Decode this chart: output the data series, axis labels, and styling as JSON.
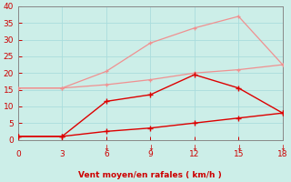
{
  "x": [
    0,
    3,
    6,
    9,
    12,
    15,
    18
  ],
  "line1_y": [
    15.5,
    15.5,
    20.5,
    29,
    33.5,
    37,
    22.5
  ],
  "line2_y": [
    15.5,
    15.5,
    16.5,
    18,
    20,
    21,
    22.5
  ],
  "line3_y": [
    1,
    1,
    11.5,
    13.5,
    19.5,
    15.5,
    8
  ],
  "line4_y": [
    1,
    1,
    2.5,
    3.5,
    5,
    6.5,
    8
  ],
  "line1_color": "#f09090",
  "line2_color": "#f09090",
  "line3_color": "#dd0000",
  "line4_color": "#dd0000",
  "bg_color": "#cceee8",
  "grid_color": "#aadddd",
  "xlabel": "Vent moyen/en rafales ( km/h )",
  "xlabel_color": "#cc0000",
  "tick_color": "#cc0000",
  "axis_color": "#888888",
  "ylim": [
    0,
    40
  ],
  "xlim": [
    0,
    18
  ],
  "yticks": [
    0,
    5,
    10,
    15,
    20,
    25,
    30,
    35,
    40
  ],
  "xticks": [
    0,
    3,
    6,
    9,
    12,
    15,
    18
  ],
  "arrow_ticks": [
    6,
    9,
    12,
    15,
    18
  ]
}
